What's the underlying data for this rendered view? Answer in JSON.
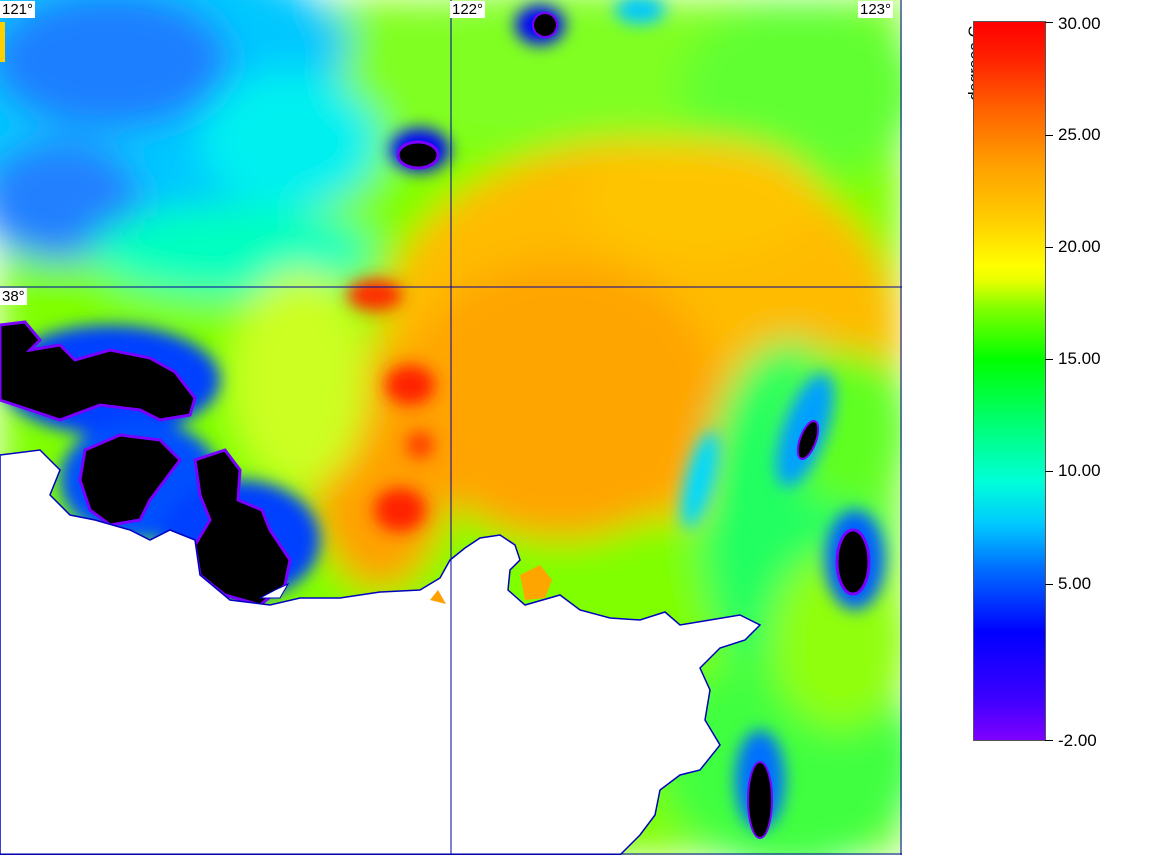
{
  "map": {
    "lon_labels": [
      "121°",
      "122°",
      "123°"
    ],
    "lat_labels": [
      "38°"
    ],
    "colors": {
      "land": "#ffffff",
      "no_data": "#000000",
      "grid_line": "#0000a0"
    }
  },
  "legend": {
    "unit": "degrees-C",
    "range": [
      -2,
      30
    ],
    "ticks": [
      "30.00",
      "25.00",
      "20.00",
      "15.00",
      "10.00",
      "5.00",
      "-2.00"
    ]
  }
}
